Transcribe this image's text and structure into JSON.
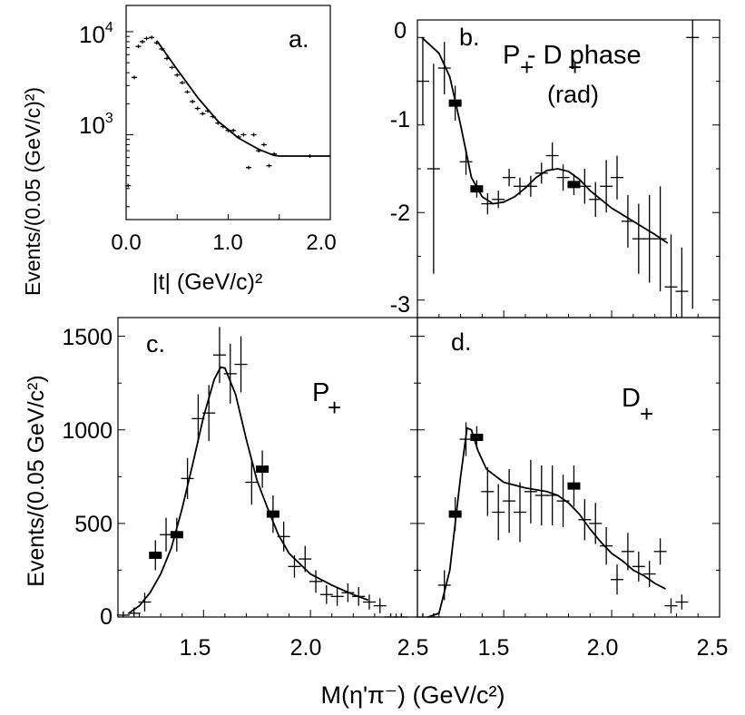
{
  "figure": {
    "xlabel": "M(η'π⁻)  (GeV/c²)",
    "ylabel": "Events/(0.05 GeV/c²)"
  },
  "chart_data": [
    {
      "panel": "a",
      "panel_label": "a.",
      "type": "scatter",
      "title": "",
      "xlabel": "|t| (GeV/c)²",
      "ylabel": "Events/(0.05 (GeV/c)²)",
      "xlim": [
        0,
        2
      ],
      "ylim": [
        150,
        18000
      ],
      "yscale": "log",
      "xticks": [
        "0.0",
        "1.0",
        "2.0"
      ],
      "yticks": [
        {
          "base": "10",
          "exp": "3",
          "value": 1000
        },
        {
          "base": "10",
          "exp": "4",
          "value": 10000
        }
      ],
      "points": [
        {
          "x": 0.02,
          "y": 320
        },
        {
          "x": 0.08,
          "y": 3600
        },
        {
          "x": 0.12,
          "y": 7200
        },
        {
          "x": 0.16,
          "y": 8000
        },
        {
          "x": 0.2,
          "y": 8600
        },
        {
          "x": 0.25,
          "y": 8800
        },
        {
          "x": 0.3,
          "y": 7800
        },
        {
          "x": 0.35,
          "y": 6800
        },
        {
          "x": 0.4,
          "y": 5500
        },
        {
          "x": 0.45,
          "y": 4500
        },
        {
          "x": 0.5,
          "y": 3800
        },
        {
          "x": 0.55,
          "y": 3200
        },
        {
          "x": 0.6,
          "y": 2600
        },
        {
          "x": 0.65,
          "y": 2100
        },
        {
          "x": 0.7,
          "y": 1800
        },
        {
          "x": 0.75,
          "y": 1600
        },
        {
          "x": 0.8,
          "y": 1700
        },
        {
          "x": 0.85,
          "y": 1500
        },
        {
          "x": 0.9,
          "y": 1300
        },
        {
          "x": 0.95,
          "y": 1200
        },
        {
          "x": 1.0,
          "y": 1100
        },
        {
          "x": 1.05,
          "y": 1100
        },
        {
          "x": 1.1,
          "y": 950
        },
        {
          "x": 1.15,
          "y": 1000
        },
        {
          "x": 1.2,
          "y": 480
        },
        {
          "x": 1.25,
          "y": 1000
        },
        {
          "x": 1.3,
          "y": 700
        },
        {
          "x": 1.35,
          "y": 800
        },
        {
          "x": 1.4,
          "y": 500
        },
        {
          "x": 1.45,
          "y": 650
        },
        {
          "x": 1.8,
          "y": 620
        }
      ],
      "fit": [
        [
          0.3,
          8200
        ],
        [
          0.5,
          4300
        ],
        [
          0.7,
          2300
        ],
        [
          0.9,
          1350
        ],
        [
          1.1,
          930
        ],
        [
          1.3,
          720
        ],
        [
          1.45,
          630
        ],
        [
          1.5,
          620
        ],
        [
          2.0,
          620
        ]
      ]
    },
    {
      "panel": "b",
      "panel_label": "b.",
      "type": "scatter",
      "title": "",
      "annotation_main": "P  - D   phase",
      "annotation_sub1": "+",
      "annotation_sub2": "+",
      "annotation_unit": "(rad)",
      "xlim": [
        1.1,
        2.5
      ],
      "ylim": [
        -3.2,
        0.2
      ],
      "yticks": [
        "0",
        "-1",
        "-2",
        "-3"
      ],
      "points": [
        {
          "x": 1.125,
          "y": -0.5,
          "err": 0.5
        },
        {
          "x": 1.175,
          "y": -1.5,
          "err": 1.2
        },
        {
          "x": 1.225,
          "y": -0.35,
          "err": 0.3
        },
        {
          "x": 1.275,
          "y": -0.75,
          "err": 0.2,
          "box": true
        },
        {
          "x": 1.325,
          "y": -1.42,
          "err": 0.15
        },
        {
          "x": 1.375,
          "y": -1.73,
          "err": 0.1,
          "box": true
        },
        {
          "x": 1.425,
          "y": -1.9,
          "err": 0.12
        },
        {
          "x": 1.475,
          "y": -1.85,
          "err": 0.1
        },
        {
          "x": 1.525,
          "y": -1.6,
          "err": 0.1
        },
        {
          "x": 1.575,
          "y": -1.7,
          "err": 0.1
        },
        {
          "x": 1.625,
          "y": -1.7,
          "err": 0.12
        },
        {
          "x": 1.675,
          "y": -1.55,
          "err": 0.12
        },
        {
          "x": 1.725,
          "y": -1.35,
          "err": 0.15
        },
        {
          "x": 1.775,
          "y": -1.6,
          "err": 0.15
        },
        {
          "x": 1.825,
          "y": -1.68,
          "err": 0.12,
          "box": true
        },
        {
          "x": 1.875,
          "y": -1.7,
          "err": 0.2
        },
        {
          "x": 1.925,
          "y": -1.85,
          "err": 0.2
        },
        {
          "x": 1.975,
          "y": -1.7,
          "err": 0.3
        },
        {
          "x": 2.025,
          "y": -1.6,
          "err": 0.25
        },
        {
          "x": 2.075,
          "y": -2.1,
          "err": 0.3
        },
        {
          "x": 2.125,
          "y": -2.3,
          "err": 0.4
        },
        {
          "x": 2.175,
          "y": -2.3,
          "err": 0.5
        },
        {
          "x": 2.225,
          "y": -2.3,
          "err": 0.6
        },
        {
          "x": 2.275,
          "y": -2.85,
          "err": 0.6
        },
        {
          "x": 2.325,
          "y": -2.9,
          "err": 0.5
        },
        {
          "x": 2.375,
          "y": 0.0,
          "err": 3.1
        }
      ],
      "fit": [
        [
          1.12,
          0.0
        ],
        [
          1.2,
          -0.18
        ],
        [
          1.25,
          -0.45
        ],
        [
          1.3,
          -1.0
        ],
        [
          1.35,
          -1.6
        ],
        [
          1.4,
          -1.82
        ],
        [
          1.45,
          -1.9
        ],
        [
          1.5,
          -1.88
        ],
        [
          1.55,
          -1.82
        ],
        [
          1.6,
          -1.72
        ],
        [
          1.65,
          -1.6
        ],
        [
          1.7,
          -1.52
        ],
        [
          1.75,
          -1.5
        ],
        [
          1.8,
          -1.53
        ],
        [
          1.85,
          -1.62
        ],
        [
          1.9,
          -1.75
        ],
        [
          2.0,
          -1.95
        ],
        [
          2.1,
          -2.1
        ],
        [
          2.2,
          -2.25
        ],
        [
          2.26,
          -2.35
        ]
      ]
    },
    {
      "panel": "c",
      "panel_label": "c.",
      "type": "scatter",
      "title": "",
      "annotation_main": "P",
      "annotation_sub": "+",
      "xlim": [
        1.1,
        2.5
      ],
      "ylim": [
        0,
        1600
      ],
      "xticks": [
        "1.5",
        "2.0",
        "2.5"
      ],
      "yticks": [
        "0",
        "500",
        "1000",
        "1500"
      ],
      "points": [
        {
          "x": 1.125,
          "y": 10,
          "err": 20
        },
        {
          "x": 1.175,
          "y": 20,
          "err": 30
        },
        {
          "x": 1.225,
          "y": 80,
          "err": 50
        },
        {
          "x": 1.275,
          "y": 330,
          "err": 80,
          "box": true
        },
        {
          "x": 1.325,
          "y": 440,
          "err": 90
        },
        {
          "x": 1.375,
          "y": 440,
          "err": 90,
          "box": true
        },
        {
          "x": 1.425,
          "y": 740,
          "err": 110
        },
        {
          "x": 1.475,
          "y": 1060,
          "err": 130
        },
        {
          "x": 1.525,
          "y": 1090,
          "err": 150
        },
        {
          "x": 1.575,
          "y": 1400,
          "err": 150
        },
        {
          "x": 1.625,
          "y": 1300,
          "err": 160
        },
        {
          "x": 1.675,
          "y": 1350,
          "err": 150
        },
        {
          "x": 1.725,
          "y": 720,
          "err": 120
        },
        {
          "x": 1.775,
          "y": 790,
          "err": 100,
          "box": true
        },
        {
          "x": 1.825,
          "y": 550,
          "err": 100,
          "box": true
        },
        {
          "x": 1.875,
          "y": 430,
          "err": 80
        },
        {
          "x": 1.925,
          "y": 270,
          "err": 60
        },
        {
          "x": 1.975,
          "y": 310,
          "err": 70
        },
        {
          "x": 2.025,
          "y": 190,
          "err": 60
        },
        {
          "x": 2.075,
          "y": 120,
          "err": 50
        },
        {
          "x": 2.125,
          "y": 110,
          "err": 50
        },
        {
          "x": 2.175,
          "y": 130,
          "err": 50
        },
        {
          "x": 2.225,
          "y": 110,
          "err": 50
        },
        {
          "x": 2.275,
          "y": 80,
          "err": 40
        },
        {
          "x": 2.325,
          "y": 60,
          "err": 40
        },
        {
          "x": 2.375,
          "y": 0,
          "err": 20
        },
        {
          "x": 2.425,
          "y": 0,
          "err": 20
        }
      ],
      "fit": [
        [
          1.15,
          20
        ],
        [
          1.2,
          60
        ],
        [
          1.25,
          130
        ],
        [
          1.3,
          230
        ],
        [
          1.35,
          370
        ],
        [
          1.4,
          580
        ],
        [
          1.45,
          820
        ],
        [
          1.5,
          1070
        ],
        [
          1.55,
          1270
        ],
        [
          1.58,
          1335
        ],
        [
          1.6,
          1330
        ],
        [
          1.65,
          1190
        ],
        [
          1.7,
          950
        ],
        [
          1.75,
          730
        ],
        [
          1.8,
          580
        ],
        [
          1.85,
          440
        ],
        [
          1.9,
          340
        ],
        [
          2.0,
          230
        ],
        [
          2.1,
          170
        ],
        [
          2.2,
          120
        ],
        [
          2.27,
          90
        ]
      ]
    },
    {
      "panel": "d",
      "panel_label": "d.",
      "type": "scatter",
      "title": "",
      "annotation_main": "D",
      "annotation_sub": "+",
      "xlim": [
        1.1,
        2.5
      ],
      "ylim": [
        0,
        1600
      ],
      "xticks": [
        "1.5",
        "2.0",
        "2.5"
      ],
      "points": [
        {
          "x": 1.125,
          "y": 0,
          "err": 20
        },
        {
          "x": 1.175,
          "y": 0,
          "err": 20
        },
        {
          "x": 1.225,
          "y": 170,
          "err": 80
        },
        {
          "x": 1.275,
          "y": 550,
          "err": 90,
          "box": true
        },
        {
          "x": 1.325,
          "y": 950,
          "err": 90
        },
        {
          "x": 1.375,
          "y": 960,
          "err": 60,
          "box": true
        },
        {
          "x": 1.425,
          "y": 670,
          "err": 130
        },
        {
          "x": 1.475,
          "y": 560,
          "err": 150
        },
        {
          "x": 1.525,
          "y": 620,
          "err": 170
        },
        {
          "x": 1.575,
          "y": 560,
          "err": 160
        },
        {
          "x": 1.625,
          "y": 670,
          "err": 170
        },
        {
          "x": 1.675,
          "y": 650,
          "err": 160
        },
        {
          "x": 1.725,
          "y": 650,
          "err": 160
        },
        {
          "x": 1.775,
          "y": 620,
          "err": 140
        },
        {
          "x": 1.825,
          "y": 700,
          "err": 110,
          "box": true
        },
        {
          "x": 1.875,
          "y": 520,
          "err": 110
        },
        {
          "x": 1.925,
          "y": 500,
          "err": 110
        },
        {
          "x": 1.975,
          "y": 380,
          "err": 100
        },
        {
          "x": 2.025,
          "y": 200,
          "err": 80
        },
        {
          "x": 2.075,
          "y": 350,
          "err": 100
        },
        {
          "x": 2.125,
          "y": 270,
          "err": 80
        },
        {
          "x": 2.175,
          "y": 230,
          "err": 70
        },
        {
          "x": 2.225,
          "y": 350,
          "err": 70
        },
        {
          "x": 2.275,
          "y": 60,
          "err": 40
        },
        {
          "x": 2.325,
          "y": 80,
          "err": 40
        }
      ],
      "fit": [
        [
          1.15,
          0
        ],
        [
          1.2,
          20
        ],
        [
          1.25,
          250
        ],
        [
          1.3,
          750
        ],
        [
          1.33,
          1010
        ],
        [
          1.35,
          1000
        ],
        [
          1.38,
          890
        ],
        [
          1.42,
          790
        ],
        [
          1.5,
          720
        ],
        [
          1.6,
          690
        ],
        [
          1.7,
          670
        ],
        [
          1.75,
          650
        ],
        [
          1.8,
          610
        ],
        [
          1.85,
          550
        ],
        [
          1.9,
          470
        ],
        [
          1.95,
          400
        ],
        [
          2.0,
          340
        ],
        [
          2.05,
          300
        ],
        [
          2.1,
          250
        ],
        [
          2.15,
          220
        ],
        [
          2.2,
          180
        ],
        [
          2.25,
          150
        ]
      ]
    }
  ]
}
